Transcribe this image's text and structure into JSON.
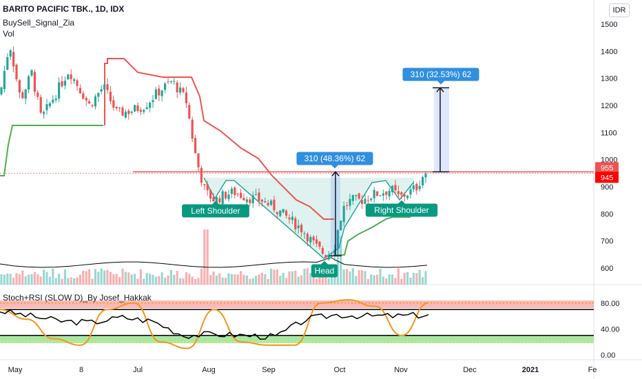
{
  "header": {
    "title": "BARITO PACIFIC TBK., 1D, IDX",
    "indicator1": "BuySell_Signal_Zia",
    "indicator2": "Vol",
    "currency": "IDR"
  },
  "colors": {
    "bull": "#26a69a",
    "bear": "#ef5350",
    "trail_red": "#ef5350",
    "trail_green": "#4caf50",
    "label_teal": "#089981",
    "callout_blue": "#2f8fe0",
    "stoch_orange": "#f7931a",
    "rsi_black": "#000000",
    "overbought_band": "#f7a8a8",
    "oversold_band": "#9ee39a"
  },
  "chart_data": [
    {
      "type": "candlestick",
      "title": "BARITO PACIFIC TBK., 1D, IDX",
      "x_ticks": [
        "May",
        "8",
        "Jul",
        "Aug",
        "Sep",
        "Oct",
        "Nov",
        "Dec",
        "2021",
        "Fe"
      ],
      "y_ticks": [
        1500,
        1400,
        1300,
        1200,
        1100,
        1000,
        900,
        800,
        700,
        600
      ],
      "ylim": [
        570,
        1520
      ],
      "price_line": 955,
      "price_labels": [
        "955",
        "945"
      ],
      "approx_close_path": [
        {
          "date": "May",
          "close": 1250
        },
        {
          "date": "8",
          "close": 1270
        },
        {
          "date": "Jul",
          "close": 1200
        },
        {
          "date": "Aug",
          "close": 880
        },
        {
          "date": "Sep",
          "close": 850
        },
        {
          "date": "late Sep",
          "close": 650
        },
        {
          "date": "Oct",
          "close": 860
        },
        {
          "date": "Nov",
          "close": 880
        },
        {
          "date": "mid Nov",
          "close": 955
        }
      ],
      "annotations": [
        {
          "text": "Left Shoulder"
        },
        {
          "text": "Head"
        },
        {
          "text": "Right Shoulder"
        },
        {
          "text": "310 (48.36%) 62"
        },
        {
          "text": "310 (32.53%) 62"
        }
      ]
    },
    {
      "type": "line",
      "title": "Stoch+RSI (SLOW D)_By Josef_Hakkak",
      "y_ticks": [
        "80.00",
        "40.00",
        "0.00"
      ],
      "ylim": [
        -5,
        95
      ],
      "levels": [
        70,
        30
      ],
      "series": [
        {
          "name": "Stoch",
          "approx_values": [
            70,
            55,
            25,
            15,
            70,
            80,
            20,
            10,
            70,
            20,
            15,
            15,
            80,
            85,
            75,
            30,
            80
          ]
        },
        {
          "name": "RSI",
          "approx_values": [
            68,
            60,
            52,
            50,
            58,
            52,
            30,
            32,
            30,
            28,
            55,
            62,
            60,
            60,
            62
          ]
        }
      ]
    }
  ]
}
